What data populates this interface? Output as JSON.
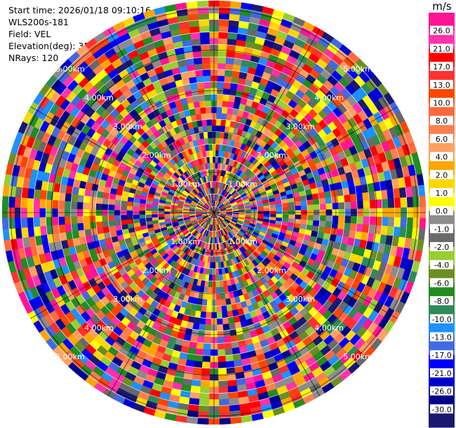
{
  "header": {
    "start_time": "Start time: 2026/01/18 09:10:16",
    "instrument": "WLS200s-181",
    "field": "Field: VEL",
    "elevation": "Elevation(deg): 35.00",
    "nrays": "NRays: 120"
  },
  "chart_data": {
    "type": "heatmap",
    "subtype": "polar PPI",
    "field": "VEL",
    "unit": "m/s",
    "n_rays": 120,
    "range_rings": [
      "1.00km",
      "2.00km",
      "3.00km",
      "4.00km",
      "5.00km"
    ],
    "max_range_km": 5.2,
    "colorbar": {
      "unit_label": "m/s",
      "ticks": [
        "26.0",
        "21.0",
        "17.0",
        "13.0",
        "10.0",
        "8.0",
        "6.0",
        "4.0",
        "2.0",
        "1.0",
        "0.0",
        "-1.0",
        "-2.0",
        "-4.0",
        "-6.0",
        "-8.0",
        "-10.0",
        "-13.0",
        "-17.0",
        "-21.0",
        "-26.0",
        "-30.0"
      ],
      "colors": [
        "#ff1493",
        "#ff33aa",
        "#ff0000",
        "#ff3030",
        "#ff4500",
        "#ff6a3d",
        "#ff7f50",
        "#ffa060",
        "#ffa500",
        "#ffd700",
        "#ffff00",
        "#8c8c8c",
        "#696969",
        "#9acd32",
        "#6b8e23",
        "#228b22",
        "#2e8b57",
        "#1e90ff",
        "#4169e1",
        "#0000ff",
        "#0000cd",
        "#00008b",
        "#191970"
      ]
    },
    "grid": true
  }
}
